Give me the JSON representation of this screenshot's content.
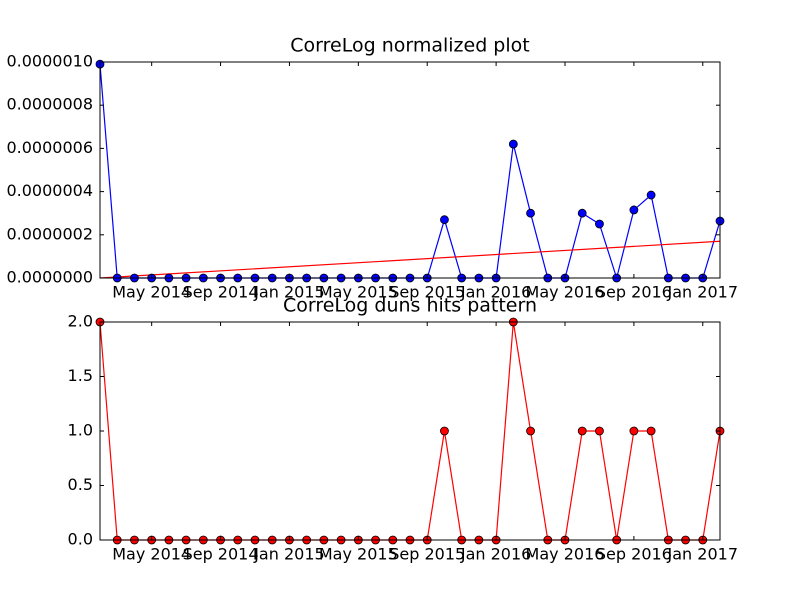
{
  "chart_data": [
    {
      "type": "line",
      "title": "CorreLog normalized plot",
      "x": [
        "2014-02",
        "2014-03",
        "2014-04",
        "2014-05",
        "2014-06",
        "2014-07",
        "2014-08",
        "2014-09",
        "2014-10",
        "2014-11",
        "2014-12",
        "2015-01",
        "2015-02",
        "2015-03",
        "2015-04",
        "2015-05",
        "2015-06",
        "2015-07",
        "2015-08",
        "2015-09",
        "2015-10",
        "2015-11",
        "2015-12",
        "2016-01",
        "2016-02",
        "2016-03",
        "2016-04",
        "2016-05",
        "2016-06",
        "2016-07",
        "2016-08",
        "2016-09",
        "2016-10",
        "2016-11",
        "2016-12",
        "2017-01",
        "2017-02"
      ],
      "series": [
        {
          "color": "#0000ff",
          "values": [
            9.9e-07,
            0,
            0,
            0,
            0,
            0,
            0,
            0,
            0,
            0,
            0,
            0,
            0,
            0,
            0,
            0,
            0,
            0,
            0,
            0,
            2.7e-07,
            0,
            0,
            0,
            6.2e-07,
            3e-07,
            0,
            0,
            3e-07,
            2.5e-07,
            0,
            3.15e-07,
            3.84e-07,
            0,
            0,
            0,
            2.64e-07
          ]
        }
      ],
      "trend": {
        "color": "#ff0000",
        "x": [
          "2014-02",
          "2017-02"
        ],
        "values": [
          0,
          1.7e-07
        ]
      },
      "xlim": [
        "2014-02",
        "2017-02"
      ],
      "ylim": [
        0,
        1e-06
      ],
      "xticks": [
        {
          "value": "2014-05",
          "label": "May 2014"
        },
        {
          "value": "2014-09",
          "label": "Sep 2014"
        },
        {
          "value": "2015-01",
          "label": "Jan 2015"
        },
        {
          "value": "2015-05",
          "label": "May 2015"
        },
        {
          "value": "2015-09",
          "label": "Sep 2015"
        },
        {
          "value": "2016-01",
          "label": "Jan 2016"
        },
        {
          "value": "2016-05",
          "label": "May 2016"
        },
        {
          "value": "2016-09",
          "label": "Sep 2016"
        },
        {
          "value": "2017-01",
          "label": "Jan 2017"
        }
      ],
      "yticks": [
        {
          "value": 0,
          "label": "0.0000000"
        },
        {
          "value": 2e-07,
          "label": "0.0000002"
        },
        {
          "value": 4e-07,
          "label": "0.0000004"
        },
        {
          "value": 6e-07,
          "label": "0.0000006"
        },
        {
          "value": 8e-07,
          "label": "0.0000008"
        },
        {
          "value": 1e-06,
          "label": "0.0000010"
        }
      ]
    },
    {
      "type": "line",
      "title": "CorreLog duns hits pattern",
      "x": [
        "2014-02",
        "2014-03",
        "2014-04",
        "2014-05",
        "2014-06",
        "2014-07",
        "2014-08",
        "2014-09",
        "2014-10",
        "2014-11",
        "2014-12",
        "2015-01",
        "2015-02",
        "2015-03",
        "2015-04",
        "2015-05",
        "2015-06",
        "2015-07",
        "2015-08",
        "2015-09",
        "2015-10",
        "2015-11",
        "2015-12",
        "2016-01",
        "2016-02",
        "2016-03",
        "2016-04",
        "2016-05",
        "2016-06",
        "2016-07",
        "2016-08",
        "2016-09",
        "2016-10",
        "2016-11",
        "2016-12",
        "2017-01",
        "2017-02"
      ],
      "series": [
        {
          "color": "#ff0000",
          "values": [
            2,
            0,
            0,
            0,
            0,
            0,
            0,
            0,
            0,
            0,
            0,
            0,
            0,
            0,
            0,
            0,
            0,
            0,
            0,
            0,
            1,
            0,
            0,
            0,
            2,
            1,
            0,
            0,
            1,
            1,
            0,
            1,
            1,
            0,
            0,
            0,
            1
          ]
        }
      ],
      "xlim": [
        "2014-02",
        "2017-02"
      ],
      "ylim": [
        0,
        2
      ],
      "xticks": [
        {
          "value": "2014-05",
          "label": "May 2014"
        },
        {
          "value": "2014-09",
          "label": "Sep 2014"
        },
        {
          "value": "2015-01",
          "label": "Jan 2015"
        },
        {
          "value": "2015-05",
          "label": "May 2015"
        },
        {
          "value": "2015-09",
          "label": "Sep 2015"
        },
        {
          "value": "2016-01",
          "label": "Jan 2016"
        },
        {
          "value": "2016-05",
          "label": "May 2016"
        },
        {
          "value": "2016-09",
          "label": "Sep 2016"
        },
        {
          "value": "2017-01",
          "label": "Jan 2017"
        }
      ],
      "yticks": [
        {
          "value": 0,
          "label": "0.0"
        },
        {
          "value": 0.5,
          "label": "0.5"
        },
        {
          "value": 1,
          "label": "1.0"
        },
        {
          "value": 1.5,
          "label": "1.5"
        },
        {
          "value": 2,
          "label": "2.0"
        }
      ]
    }
  ]
}
